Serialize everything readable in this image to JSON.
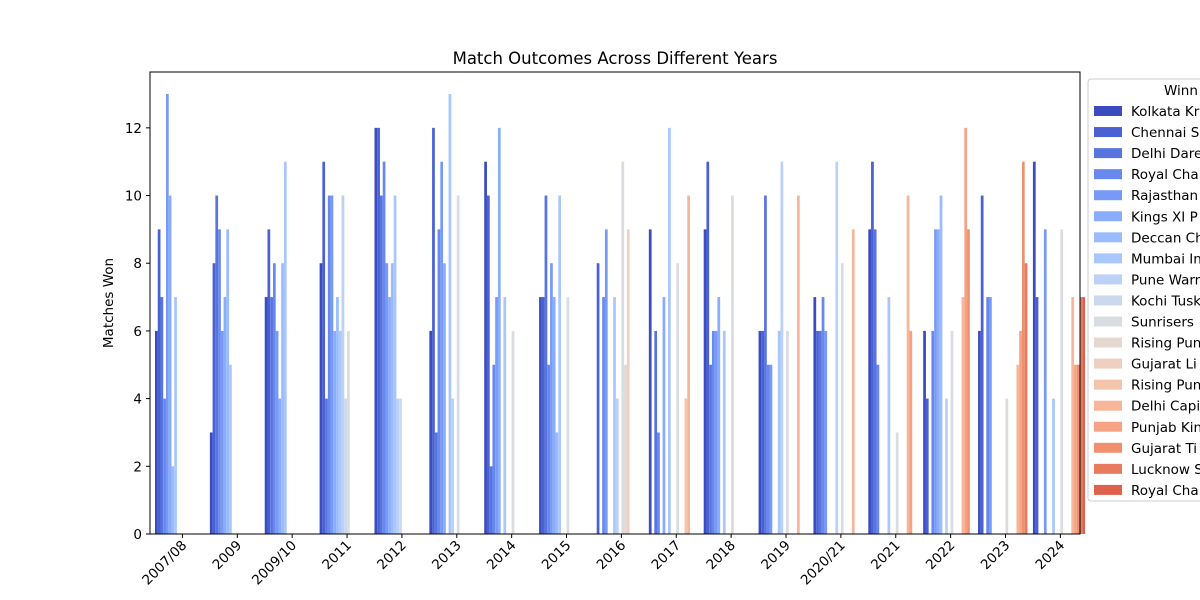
{
  "chart_data": {
    "type": "bar",
    "title": "Match Outcomes Across Different Years",
    "xlabel": "",
    "ylabel": "Matches Won",
    "ylim": [
      0,
      13.65
    ],
    "yticks": [
      0,
      2,
      4,
      6,
      8,
      10,
      12
    ],
    "grid": false,
    "legend": {
      "title": "Winn",
      "placement": "outside-right-top"
    },
    "categories": [
      "2007/08",
      "2009",
      "2009/10",
      "2011",
      "2012",
      "2013",
      "2014",
      "2015",
      "2016",
      "2017",
      "2018",
      "2019",
      "2020/21",
      "2021",
      "2022",
      "2023",
      "2024"
    ],
    "series": [
      {
        "name": "Kolkata Kr",
        "color": "#3b4cc0",
        "values": [
          6,
          3,
          7,
          8,
          12,
          6,
          11,
          7,
          null,
          9,
          9,
          6,
          7,
          9,
          6,
          6,
          11
        ]
      },
      {
        "name": "Chennai S",
        "color": "#4961d2",
        "values": [
          9,
          8,
          9,
          11,
          12,
          12,
          10,
          7,
          8,
          null,
          11,
          6,
          6,
          11,
          4,
          10,
          7
        ]
      },
      {
        "name": "Delhi Dare",
        "color": "#5875df",
        "values": [
          7,
          10,
          7,
          4,
          10,
          3,
          2,
          10,
          null,
          6,
          5,
          10,
          6,
          9,
          null,
          null,
          null
        ]
      },
      {
        "name": "Royal Cha",
        "color": "#6788ee",
        "values": [
          4,
          9,
          8,
          10,
          11,
          9,
          5,
          5,
          7,
          3,
          6,
          5,
          7,
          5,
          6,
          7,
          null
        ]
      },
      {
        "name": "Rajasthan",
        "color": "#779af7",
        "values": [
          13,
          6,
          6,
          10,
          8,
          11,
          7,
          8,
          9,
          null,
          6,
          5,
          6,
          null,
          9,
          7,
          9
        ]
      },
      {
        "name": "Kings XI P",
        "color": "#89acfd",
        "values": [
          10,
          7,
          4,
          6,
          7,
          8,
          12,
          7,
          null,
          7,
          7,
          null,
          null,
          null,
          9,
          null,
          null
        ]
      },
      {
        "name": "Deccan Ch",
        "color": "#9abbff",
        "values": [
          2,
          9,
          8,
          7,
          8,
          null,
          null,
          3,
          null,
          null,
          null,
          null,
          null,
          null,
          10,
          null,
          null
        ]
      },
      {
        "name": "Mumbai In",
        "color": "#aac7fd",
        "values": [
          7,
          5,
          11,
          6,
          10,
          13,
          7,
          10,
          7,
          12,
          6,
          6,
          null,
          7,
          null,
          null,
          4
        ]
      },
      {
        "name": "Pune Warr",
        "color": "#bbd1f8",
        "values": [
          null,
          null,
          null,
          10,
          4,
          4,
          null,
          null,
          4,
          null,
          null,
          11,
          11,
          null,
          4,
          null,
          null
        ]
      },
      {
        "name": "Kochi Tusk",
        "color": "#cbd8ee",
        "values": [
          null,
          null,
          null,
          4,
          4,
          null,
          null,
          null,
          null,
          null,
          null,
          null,
          null,
          null,
          null,
          null,
          null
        ]
      },
      {
        "name": "Sunrisers",
        "color": "#d9dce1",
        "values": [
          null,
          null,
          null,
          6,
          null,
          10,
          6,
          7,
          11,
          8,
          10,
          6,
          8,
          3,
          6,
          4,
          9
        ]
      },
      {
        "name": "Rising Pun",
        "color": "#e5d8d1",
        "values": [
          null,
          null,
          null,
          null,
          null,
          null,
          null,
          null,
          5,
          null,
          null,
          null,
          null,
          null,
          null,
          null,
          null
        ]
      },
      {
        "name": "Gujarat Li",
        "color": "#efcfbf",
        "values": [
          null,
          null,
          null,
          null,
          null,
          null,
          null,
          null,
          9,
          null,
          null,
          null,
          null,
          null,
          null,
          null,
          null
        ]
      },
      {
        "name": "Rising Pun",
        "color": "#f5c4ac",
        "values": [
          null,
          null,
          null,
          null,
          null,
          null,
          null,
          null,
          null,
          4,
          null,
          null,
          null,
          null,
          null,
          null,
          null
        ]
      },
      {
        "name": "Delhi Capi",
        "color": "#f7b599",
        "values": [
          null,
          null,
          null,
          null,
          null,
          null,
          null,
          null,
          null,
          10,
          null,
          10,
          9,
          10,
          7,
          5,
          7
        ]
      },
      {
        "name": "Punjab Kin",
        "color": "#f6a385",
        "values": [
          null,
          null,
          null,
          null,
          null,
          null,
          null,
          null,
          null,
          null,
          null,
          null,
          null,
          6,
          12,
          6,
          5
        ]
      },
      {
        "name": "Gujarat Ti",
        "color": "#f1906f",
        "values": [
          null,
          null,
          null,
          null,
          null,
          null,
          null,
          null,
          null,
          null,
          null,
          null,
          null,
          null,
          9,
          11,
          5
        ]
      },
      {
        "name": "Lucknow S",
        "color": "#e97a5f",
        "values": [
          null,
          null,
          null,
          null,
          null,
          null,
          null,
          null,
          null,
          null,
          null,
          null,
          null,
          null,
          null,
          8,
          7
        ]
      },
      {
        "name": "Royal Cha",
        "color": "#de614d",
        "values": [
          null,
          null,
          null,
          null,
          null,
          null,
          null,
          null,
          null,
          null,
          null,
          null,
          null,
          null,
          null,
          null,
          7
        ]
      }
    ]
  }
}
